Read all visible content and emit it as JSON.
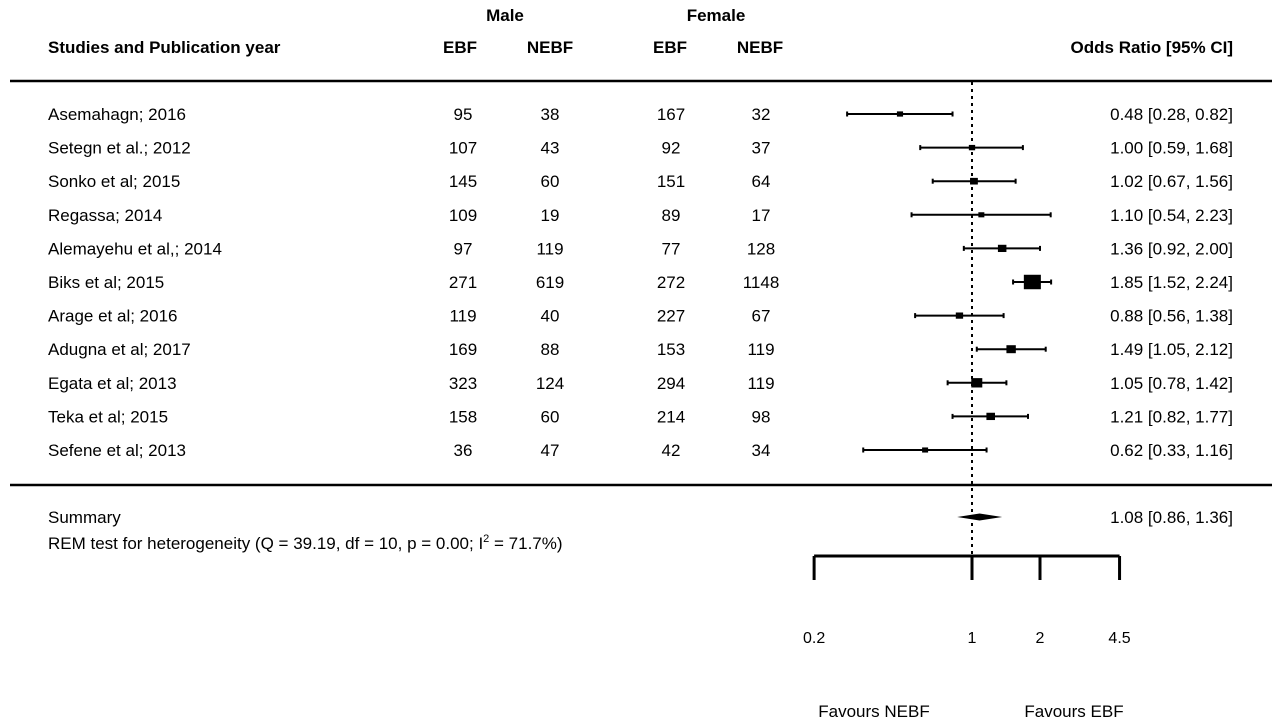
{
  "header": {
    "group_male": "Male",
    "group_female": "Female",
    "study_col": "Studies and Publication year",
    "male_ebf": "EBF",
    "male_nebf": "NEBF",
    "female_ebf": "EBF",
    "female_nebf": "NEBF",
    "or_col": "Odds Ratio [95% CI]"
  },
  "summary": {
    "label": "Summary",
    "ci_text": "1.08 [0.86, 1.36]",
    "het_pre": "REM test for heterogeneity (Q = 39.19, df = 10, p = 0.00; I",
    "het_sup": "2",
    "het_post": " = 71.7%)"
  },
  "footer": {
    "favours_left": "Favours NEBF",
    "favours_right": "Favours EBF"
  },
  "chart_data": {
    "type": "forest",
    "x_scale": "log",
    "reference_line": 1,
    "xticks": [
      0.2,
      1,
      2,
      4.5
    ],
    "xtick_labels": [
      "0.2",
      "1",
      "2",
      "4.5"
    ],
    "studies": [
      {
        "study": "Asemahagn; 2016",
        "male_ebf": "95",
        "male_nebf": "38",
        "female_ebf": "167",
        "female_nebf": "32",
        "or": 0.48,
        "lo": 0.28,
        "hi": 0.82,
        "ci_text": "0.48 [0.28, 0.82]"
      },
      {
        "study": "Setegn et al.; 2012",
        "male_ebf": "107",
        "male_nebf": "43",
        "female_ebf": "92",
        "female_nebf": "37",
        "or": 1.0,
        "lo": 0.59,
        "hi": 1.68,
        "ci_text": "1.00 [0.59, 1.68]"
      },
      {
        "study": "Sonko et al; 2015",
        "male_ebf": "145",
        "male_nebf": "60",
        "female_ebf": "151",
        "female_nebf": "64",
        "or": 1.02,
        "lo": 0.67,
        "hi": 1.56,
        "ci_text": "1.02 [0.67, 1.56]"
      },
      {
        "study": "Regassa; 2014",
        "male_ebf": "109",
        "male_nebf": "19",
        "female_ebf": "89",
        "female_nebf": "17",
        "or": 1.1,
        "lo": 0.54,
        "hi": 2.23,
        "ci_text": "1.10 [0.54, 2.23]"
      },
      {
        "study": "Alemayehu et al,; 2014",
        "male_ebf": "97",
        "male_nebf": "119",
        "female_ebf": "77",
        "female_nebf": "128",
        "or": 1.36,
        "lo": 0.92,
        "hi": 2.0,
        "ci_text": "1.36 [0.92, 2.00]"
      },
      {
        "study": "Biks et al; 2015",
        "male_ebf": "271",
        "male_nebf": "619",
        "female_ebf": "272",
        "female_nebf": "1148",
        "or": 1.85,
        "lo": 1.52,
        "hi": 2.24,
        "ci_text": "1.85 [1.52, 2.24]"
      },
      {
        "study": "Arage et al; 2016",
        "male_ebf": "119",
        "male_nebf": "40",
        "female_ebf": "227",
        "female_nebf": "67",
        "or": 0.88,
        "lo": 0.56,
        "hi": 1.38,
        "ci_text": "0.88 [0.56, 1.38]"
      },
      {
        "study": "Adugna et al; 2017",
        "male_ebf": "169",
        "male_nebf": "88",
        "female_ebf": "153",
        "female_nebf": "119",
        "or": 1.49,
        "lo": 1.05,
        "hi": 2.12,
        "ci_text": "1.49 [1.05, 2.12]"
      },
      {
        "study": "Egata et al; 2013",
        "male_ebf": "323",
        "male_nebf": "124",
        "female_ebf": "294",
        "female_nebf": "119",
        "or": 1.05,
        "lo": 0.78,
        "hi": 1.42,
        "ci_text": "1.05 [0.78, 1.42]"
      },
      {
        "study": "Teka et al; 2015",
        "male_ebf": "158",
        "male_nebf": "60",
        "female_ebf": "214",
        "female_nebf": "98",
        "or": 1.21,
        "lo": 0.82,
        "hi": 1.77,
        "ci_text": "1.21 [0.82, 1.77]"
      },
      {
        "study": "Sefene et al; 2013",
        "male_ebf": "36",
        "male_nebf": "47",
        "female_ebf": "42",
        "female_nebf": "34",
        "or": 0.62,
        "lo": 0.33,
        "hi": 1.16,
        "ci_text": "0.62 [0.33, 1.16]"
      }
    ],
    "summary": {
      "or": 1.08,
      "lo": 0.86,
      "hi": 1.36
    }
  }
}
